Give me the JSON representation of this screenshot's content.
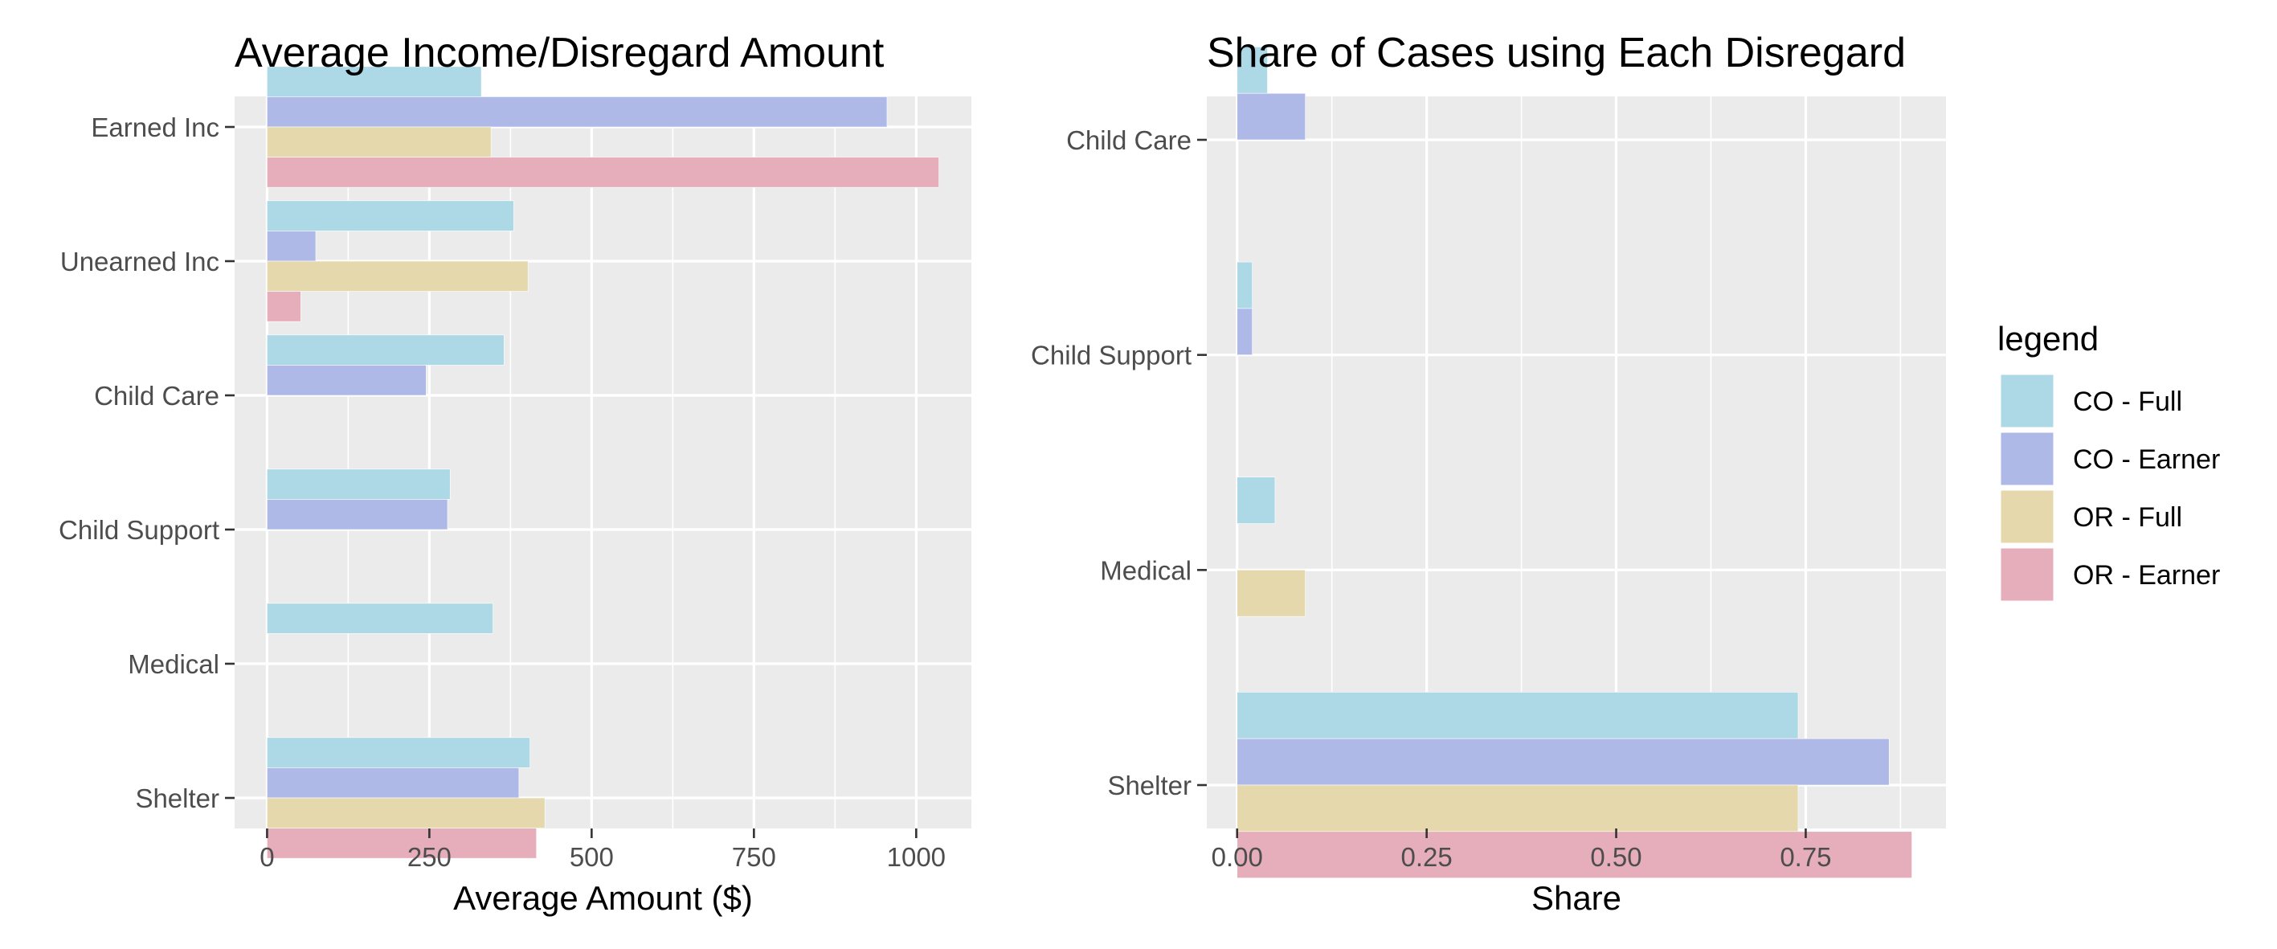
{
  "legend": {
    "title": "legend",
    "items": [
      {
        "label": "CO - Full",
        "color": "#ADD8E6"
      },
      {
        "label": "CO - Earner",
        "color": "#AEB9E8"
      },
      {
        "label": "OR - Full",
        "color": "#E6D8AD"
      },
      {
        "label": "OR - Earner",
        "color": "#E6ADBB"
      }
    ]
  },
  "chart_data": [
    {
      "type": "bar",
      "orientation": "horizontal",
      "title": "Average Income/Disregard Amount",
      "xlabel": "Average Amount ($)",
      "ylabel": "",
      "xlim": [
        -50,
        1085
      ],
      "xticks": [
        0,
        250,
        500,
        750,
        1000
      ],
      "xtick_labels": [
        "0",
        "250",
        "500",
        "750",
        "1000"
      ],
      "categories": [
        "Earned Inc",
        "Unearned Inc",
        "Child Care",
        "Child Support",
        "Medical",
        "Shelter"
      ],
      "grid": true,
      "series": [
        {
          "name": "CO - Full",
          "values": [
            330,
            380,
            365,
            282,
            348,
            405
          ]
        },
        {
          "name": "CO - Earner",
          "values": [
            955,
            75,
            245,
            278,
            null,
            388
          ]
        },
        {
          "name": "OR - Full",
          "values": [
            345,
            402,
            null,
            null,
            null,
            428
          ]
        },
        {
          "name": "OR - Earner",
          "values": [
            1035,
            52,
            null,
            null,
            null,
            415
          ]
        }
      ]
    },
    {
      "type": "bar",
      "orientation": "horizontal",
      "title": "Share of Cases using Each Disregard",
      "xlabel": "Share",
      "ylabel": "",
      "xlim": [
        -0.04,
        0.935
      ],
      "xticks": [
        0,
        0.25,
        0.5,
        0.75
      ],
      "xtick_labels": [
        "0.00",
        "0.25",
        "0.50",
        "0.75"
      ],
      "categories": [
        "Child Care",
        "Child Support",
        "Medical",
        "Shelter"
      ],
      "grid": true,
      "legend_position": "right",
      "series": [
        {
          "name": "CO - Full",
          "values": [
            0.04,
            0.02,
            0.05,
            0.74
          ]
        },
        {
          "name": "CO - Earner",
          "values": [
            0.09,
            0.02,
            null,
            0.86
          ]
        },
        {
          "name": "OR - Full",
          "values": [
            null,
            null,
            0.09,
            0.74
          ]
        },
        {
          "name": "OR - Earner",
          "values": [
            null,
            null,
            null,
            0.89
          ]
        }
      ]
    }
  ]
}
